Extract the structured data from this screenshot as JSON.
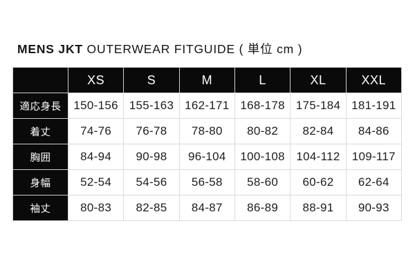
{
  "title": {
    "brand": "MENS JKT",
    "subtitle": " OUTERWEAR FITGUIDE ( 単位 cm )"
  },
  "colors": {
    "header_bg": "#0a0a0a",
    "header_text": "#ffffff",
    "cell_bg": "#ffffff",
    "cell_text": "#1c1c1c",
    "border": "#d9d9d9",
    "page_bg": "#ffffff"
  },
  "table": {
    "unit": "cm",
    "columns": [
      "XS",
      "S",
      "M",
      "L",
      "XL",
      "XXL"
    ],
    "rows": [
      {
        "label": "適応身長",
        "values": [
          "150-156",
          "155-163",
          "162-171",
          "168-178",
          "175-184",
          "181-191"
        ]
      },
      {
        "label": "着丈",
        "values": [
          "74-76",
          "76-78",
          "78-80",
          "80-82",
          "82-84",
          "84-86"
        ]
      },
      {
        "label": "胸囲",
        "values": [
          "84-94",
          "90-98",
          "96-104",
          "100-108",
          "104-112",
          "109-117"
        ]
      },
      {
        "label": "身幅",
        "values": [
          "52-54",
          "54-56",
          "56-58",
          "58-60",
          "60-62",
          "62-64"
        ]
      },
      {
        "label": "袖丈",
        "values": [
          "80-83",
          "82-85",
          "84-87",
          "86-89",
          "88-91",
          "90-93"
        ]
      }
    ]
  }
}
